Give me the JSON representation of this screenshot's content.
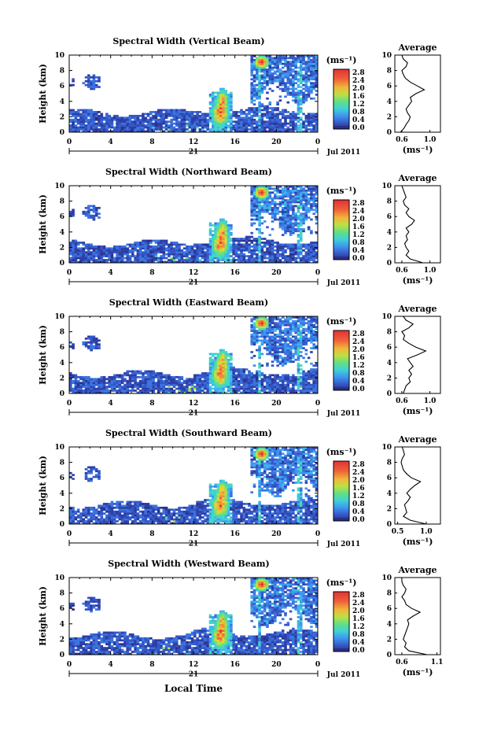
{
  "figure": {
    "xlabel": "Local Time",
    "date_label": "Jul 2011",
    "day_label": "21"
  },
  "colorbar": {
    "unit": "(ms⁻¹)",
    "ticks": [
      "2.8",
      "2.4",
      "2.0",
      "1.6",
      "1.2",
      "0.8",
      "0.4",
      "0.0"
    ],
    "colors": [
      "#2b2f84",
      "#2e3ea6",
      "#3557c6",
      "#3a74e0",
      "#3f95ef",
      "#3fb6ec",
      "#3fd1d6",
      "#48dbb0",
      "#63df84",
      "#8ee05c",
      "#bde043",
      "#e2d43a",
      "#f1b43a",
      "#f38c3a",
      "#ee5f3a",
      "#e23232"
    ]
  },
  "chart_data": [
    {
      "type": "heatmap",
      "title": "Spectral Width (Vertical Beam)",
      "ylabel": "Height (km)",
      "x_ticks": [
        "0",
        "4",
        "8",
        "12",
        "16",
        "20",
        "0"
      ],
      "y_ticks": [
        "0",
        "2",
        "4",
        "6",
        "8",
        "10"
      ],
      "xlim": [
        0,
        24
      ],
      "ylim": [
        0,
        10
      ],
      "profile": {
        "title": "Average",
        "xlabel": "(ms⁻¹)",
        "x_ticks": [
          "0.6",
          "1.0"
        ],
        "xlim": [
          0.5,
          1.15
        ],
        "heights": [
          0,
          0.5,
          1,
          1.5,
          2,
          2.5,
          3,
          3.5,
          4,
          4.5,
          5,
          5.5,
          6,
          6.5,
          7,
          7.5,
          8,
          8.5,
          9,
          9.5,
          10
        ],
        "values": [
          0.58,
          0.63,
          0.66,
          0.7,
          0.72,
          0.68,
          0.66,
          0.7,
          0.74,
          0.72,
          0.8,
          0.92,
          0.82,
          0.72,
          0.65,
          0.62,
          0.6,
          0.66,
          0.68,
          0.62,
          0.6
        ]
      }
    },
    {
      "type": "heatmap",
      "title": "Spectral Width (Northward Beam)",
      "ylabel": "Height (km)",
      "x_ticks": [
        "0",
        "4",
        "8",
        "12",
        "16",
        "20",
        "0"
      ],
      "y_ticks": [
        "0",
        "2",
        "4",
        "6",
        "8",
        "10"
      ],
      "xlim": [
        0,
        24
      ],
      "ylim": [
        0,
        10
      ],
      "profile": {
        "title": "Average",
        "xlabel": "(ms⁻¹)",
        "x_ticks": [
          "0.6",
          "1.0"
        ],
        "xlim": [
          0.5,
          1.15
        ],
        "heights": [
          0,
          0.5,
          1,
          1.5,
          2,
          2.5,
          3,
          3.5,
          4,
          4.5,
          5,
          5.5,
          6,
          6.5,
          7,
          7.5,
          8,
          8.5,
          9,
          9.5,
          10
        ],
        "values": [
          0.9,
          0.72,
          0.66,
          0.7,
          0.66,
          0.64,
          0.68,
          0.66,
          0.7,
          0.66,
          0.74,
          0.78,
          0.7,
          0.66,
          0.7,
          0.64,
          0.62,
          0.66,
          0.64,
          0.62,
          0.6
        ]
      }
    },
    {
      "type": "heatmap",
      "title": "Spectral Width (Eastward Beam)",
      "ylabel": "Height (km)",
      "x_ticks": [
        "0",
        "4",
        "8",
        "12",
        "16",
        "20",
        "0"
      ],
      "y_ticks": [
        "0",
        "2",
        "4",
        "6",
        "8",
        "10"
      ],
      "xlim": [
        0,
        24
      ],
      "ylim": [
        0,
        10
      ],
      "profile": {
        "title": "Average",
        "xlabel": "(ms⁻¹)",
        "x_ticks": [
          "0.6",
          "1.0"
        ],
        "xlim": [
          0.5,
          1.15
        ],
        "heights": [
          0,
          0.5,
          1,
          1.5,
          2,
          2.5,
          3,
          3.5,
          4,
          4.5,
          5,
          5.5,
          6,
          6.5,
          7,
          7.5,
          8,
          8.5,
          9,
          9.5,
          10
        ],
        "values": [
          0.62,
          0.64,
          0.66,
          0.72,
          0.7,
          0.74,
          0.7,
          0.76,
          0.72,
          0.68,
          0.82,
          0.94,
          0.8,
          0.7,
          0.62,
          0.64,
          0.6,
          0.7,
          0.76,
          0.66,
          0.62
        ]
      }
    },
    {
      "type": "heatmap",
      "title": "Spectral Width (Southward Beam)",
      "ylabel": "Height (km)",
      "x_ticks": [
        "0",
        "4",
        "8",
        "12",
        "16",
        "20",
        "0"
      ],
      "y_ticks": [
        "0",
        "2",
        "4",
        "6",
        "8",
        "10"
      ],
      "xlim": [
        0,
        24
      ],
      "ylim": [
        0,
        10
      ],
      "profile": {
        "title": "Average",
        "xlabel": "(ms⁻¹)",
        "x_ticks": [
          "0.5",
          "1.0"
        ],
        "xlim": [
          0.45,
          1.25
        ],
        "heights": [
          0,
          0.5,
          1,
          1.5,
          2,
          2.5,
          3,
          3.5,
          4,
          4.5,
          5,
          5.5,
          6,
          6.5,
          7,
          7.5,
          8,
          8.5,
          9,
          9.5,
          10
        ],
        "values": [
          1.0,
          0.72,
          0.6,
          0.66,
          0.64,
          0.62,
          0.68,
          0.72,
          0.66,
          0.72,
          0.8,
          0.9,
          0.74,
          0.66,
          0.6,
          0.58,
          0.56,
          0.58,
          0.62,
          0.6,
          0.58
        ]
      }
    },
    {
      "type": "heatmap",
      "title": "Spectral Width (Westward Beam)",
      "ylabel": "Height (km)",
      "x_ticks": [
        "0",
        "4",
        "8",
        "12",
        "16",
        "20",
        "0"
      ],
      "y_ticks": [
        "0",
        "2",
        "4",
        "6",
        "8",
        "10"
      ],
      "xlim": [
        0,
        24
      ],
      "ylim": [
        0,
        10
      ],
      "profile": {
        "title": "Average",
        "xlabel": "(ms⁻¹)",
        "x_ticks": [
          "0.6",
          "1.1"
        ],
        "xlim": [
          0.5,
          1.15
        ],
        "heights": [
          0,
          0.5,
          1,
          1.5,
          2,
          2.5,
          3,
          3.5,
          4,
          4.5,
          5,
          5.5,
          6,
          6.5,
          7,
          7.5,
          8,
          8.5,
          9,
          9.5,
          10
        ],
        "values": [
          0.96,
          0.7,
          0.64,
          0.66,
          0.62,
          0.64,
          0.66,
          0.68,
          0.7,
          0.68,
          0.76,
          0.86,
          0.74,
          0.66,
          0.64,
          0.6,
          0.64,
          0.66,
          0.62,
          0.6,
          0.6
        ]
      }
    }
  ]
}
